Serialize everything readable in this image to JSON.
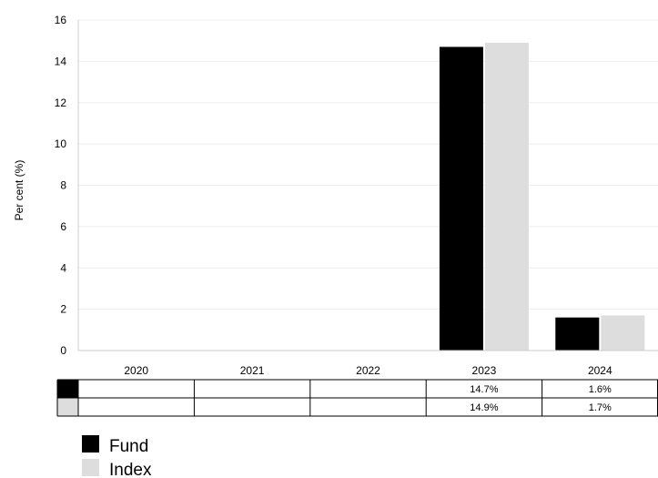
{
  "chart_data": {
    "type": "bar",
    "title": "",
    "xlabel": "",
    "ylabel": "Per cent (%)",
    "categories": [
      "2020",
      "2021",
      "2022",
      "2023",
      "2024"
    ],
    "ylim": [
      0,
      16
    ],
    "yticks": [
      0,
      2,
      4,
      6,
      8,
      10,
      12,
      14,
      16
    ],
    "grid": true,
    "legend_position": "bottom-left",
    "series": [
      {
        "name": "Fund",
        "color": "#000000",
        "values": [
          null,
          null,
          null,
          14.7,
          1.6
        ],
        "labels": [
          "",
          "",
          "",
          "14.7%",
          "1.6%"
        ]
      },
      {
        "name": "Index",
        "color": "#dddddd",
        "values": [
          null,
          null,
          null,
          14.9,
          1.7
        ],
        "labels": [
          "",
          "",
          "",
          "14.9%",
          "1.7%"
        ]
      }
    ]
  }
}
